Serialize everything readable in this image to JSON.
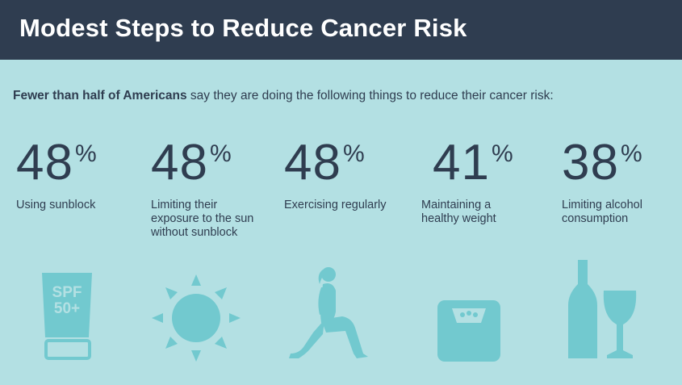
{
  "title": "Modest Steps to Reduce Cancer Risk",
  "subtitle": {
    "bold": "Fewer than half of Americans",
    "rest": " say they are doing the following things to reduce their cancer risk:"
  },
  "stats": [
    {
      "value": "48",
      "unit": "%",
      "label": "Using sunblock",
      "icon": "sunscreen-bottle-icon",
      "icon_text": "SPF 50+"
    },
    {
      "value": "48",
      "unit": "%",
      "label": "Limiting their exposure to the sun without sunblock",
      "icon": "sun-icon"
    },
    {
      "value": "48",
      "unit": "%",
      "label": "Exercising regularly",
      "icon": "lunging-woman-icon"
    },
    {
      "value": "41",
      "unit": "%",
      "label": "Maintaining a healthy weight",
      "icon": "bathroom-scale-icon"
    },
    {
      "value": "38",
      "unit": "%",
      "label": "Limiting alcohol consumption",
      "icon": "wine-bottle-glass-icon"
    }
  ],
  "colors": {
    "background": "#b3e0e3",
    "header": "#2f3d50",
    "text": "#2f3d50",
    "icon": "#72c9cf"
  }
}
